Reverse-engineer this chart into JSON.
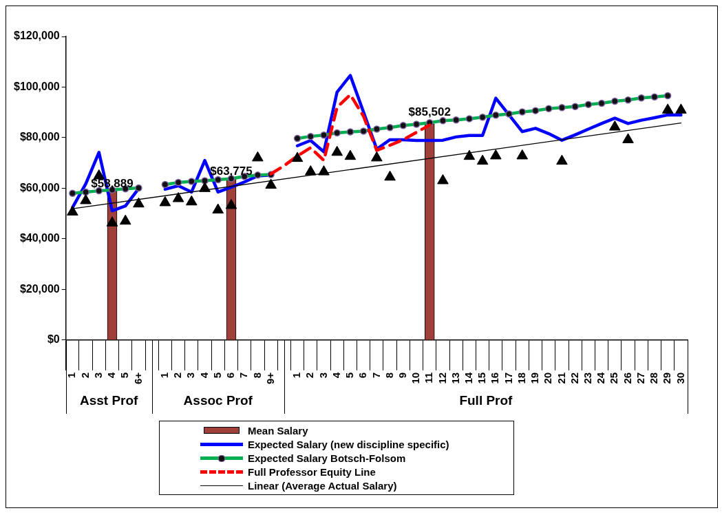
{
  "chart_data": {
    "type": "line",
    "categories": [
      "1",
      "2",
      "3",
      "4",
      "5",
      "6+",
      null,
      "1",
      "2",
      "3",
      "4",
      "5",
      "6",
      "7",
      "8",
      "9+",
      null,
      "1",
      "2",
      "3",
      "4",
      "5",
      "6",
      "7",
      "8",
      "9",
      "10",
      "11",
      "12",
      "13",
      "14",
      "15",
      "16",
      "17",
      "18",
      "19",
      "20",
      "21",
      "22",
      "23",
      "24",
      "25",
      "26",
      "27",
      "28",
      "29",
      "30"
    ],
    "annotations": [
      "Asst Prof",
      "Assoc Prof",
      "Full Prof"
    ],
    "ylim": [
      0,
      120000
    ],
    "yticks": [
      {
        "value": 0,
        "label": "$0"
      },
      {
        "value": 20000,
        "label": "$20,000"
      },
      {
        "value": 40000,
        "label": "$40,000"
      },
      {
        "value": 60000,
        "label": "$60,000"
      },
      {
        "value": 80000,
        "label": "$80,000"
      },
      {
        "value": 100000,
        "label": "$100,000"
      },
      {
        "value": 120000,
        "label": "$120,000"
      }
    ],
    "grid": false,
    "legend": "bottom",
    "series": [
      {
        "type": "bar",
        "name": "Mean Salary",
        "color": "#a0403a",
        "values": [
          null,
          null,
          null,
          58889,
          null,
          null,
          null,
          null,
          null,
          null,
          null,
          null,
          63775,
          null,
          null,
          null,
          null,
          null,
          null,
          null,
          null,
          null,
          null,
          null,
          null,
          null,
          null,
          85502,
          null,
          null,
          null,
          null,
          null,
          null,
          null,
          null,
          null,
          null,
          null,
          null,
          null,
          null,
          null,
          null,
          null,
          null,
          null
        ],
        "value_labels": [
          null,
          null,
          null,
          "$58,889",
          null,
          null,
          null,
          null,
          null,
          null,
          null,
          null,
          "$63,775",
          null,
          null,
          null,
          null,
          null,
          null,
          null,
          null,
          null,
          null,
          null,
          null,
          null,
          null,
          "$85,502",
          null,
          null,
          null,
          null,
          null,
          null,
          null,
          null,
          null,
          null,
          null,
          null,
          null,
          null,
          null,
          null,
          null,
          null,
          null
        ]
      },
      {
        "name": "Expected Salary (new discipline specific)",
        "color": "#0000ff",
        "line_style": "solid",
        "marker": "none",
        "values": [
          52400,
          61700,
          74200,
          51100,
          53000,
          59900,
          null,
          59600,
          61000,
          58500,
          71000,
          58500,
          60400,
          62500,
          64900,
          65200,
          null,
          76800,
          78900,
          74400,
          98000,
          104600,
          90100,
          75500,
          79200,
          79200,
          78900,
          78900,
          79000,
          80300,
          80900,
          80900,
          95600,
          89000,
          82400,
          83700,
          81600,
          79000,
          81100,
          83400,
          85600,
          87700,
          85600,
          86900,
          87900,
          89000,
          89000
        ]
      },
      {
        "name": "Expected Salary Botsch-Folsom",
        "color": "#00b050",
        "line_style": "solid",
        "marker": "circle",
        "values": [
          58000,
          58500,
          59000,
          59400,
          59800,
          60100,
          null,
          61500,
          62300,
          62700,
          63000,
          63400,
          63800,
          64700,
          65200,
          65400,
          null,
          79700,
          80500,
          81000,
          81900,
          82300,
          82600,
          83400,
          84000,
          84800,
          85300,
          85900,
          86700,
          87000,
          87500,
          88100,
          88900,
          89400,
          90200,
          90700,
          91500,
          91900,
          92300,
          93100,
          93600,
          94400,
          94900,
          95700,
          96100,
          96600,
          null
        ]
      },
      {
        "name": "Full Professor Equity Line",
        "color": "#ff0000",
        "line_style": "dashed",
        "marker": "none",
        "values": [
          null,
          null,
          null,
          null,
          null,
          null,
          null,
          null,
          null,
          null,
          null,
          null,
          null,
          null,
          null,
          65700,
          68900,
          72800,
          76000,
          71000,
          92000,
          97000,
          88500,
          75000,
          77000,
          79200,
          82100,
          85000,
          null,
          null,
          null,
          null,
          null,
          null,
          null,
          null,
          null,
          null,
          null,
          null,
          null,
          null,
          null,
          null,
          null,
          null,
          null
        ]
      },
      {
        "name": "Linear (Average Actual Salary)",
        "color": "#000000",
        "line_style": "solid",
        "marker": "none",
        "x": [
          "1",
          "30"
        ],
        "values": [
          51900,
          85800
        ]
      },
      {
        "type": "scatter",
        "color": "#000000",
        "marker": "triangle",
        "values": [
          50600,
          55100,
          64900,
          46300,
          47000,
          53800,
          null,
          54300,
          55900,
          54600,
          59900,
          51400,
          53200,
          null,
          72000,
          61200,
          null,
          71800,
          66500,
          66500,
          74200,
          72600,
          null,
          72000,
          64400,
          null,
          null,
          null,
          63000,
          null,
          72600,
          70700,
          72800,
          null,
          72800,
          null,
          null,
          70700,
          null,
          null,
          null,
          84200,
          79200,
          null,
          null,
          90900,
          90900
        ]
      }
    ]
  }
}
